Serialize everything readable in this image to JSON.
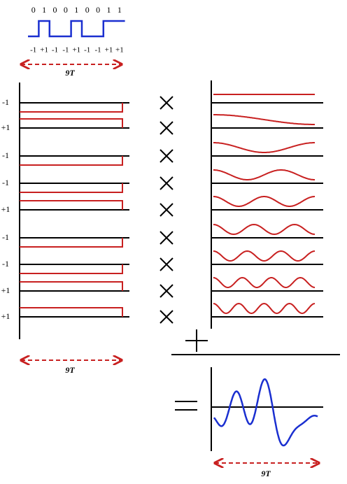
{
  "bits": [
    "0",
    "1",
    "0",
    "0",
    "1",
    "0",
    "0",
    "1",
    "1"
  ],
  "levels": [
    "-1",
    "+1",
    "-1",
    "-1",
    "+1",
    "-1",
    "-1",
    "+1",
    "+1"
  ],
  "top_span": "9T",
  "row_labels": [
    "-1",
    "+1",
    "-1",
    "-1",
    "+1",
    "-1",
    "-1",
    "+1",
    "+1"
  ],
  "left_span": "9T",
  "bottom_span": "9T"
}
